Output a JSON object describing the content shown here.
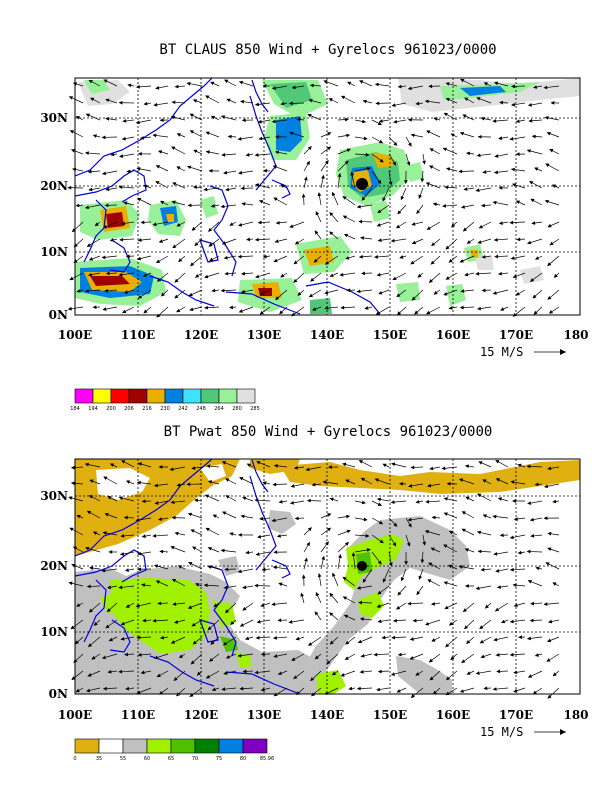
{
  "panels": [
    {
      "title": "BT CLAUS 850 Wind + Gyrelocs 961023/0000",
      "y_labels": [
        "30N",
        "20N",
        "10N",
        "0N"
      ],
      "x_labels": [
        "100E",
        "110E",
        "120E",
        "130E",
        "140E",
        "150E",
        "160E",
        "170E",
        "180"
      ],
      "scale_label": "15 M/S",
      "legend": {
        "values": [
          "184",
          "194",
          "200",
          "206",
          "216",
          "230",
          "242",
          "248",
          "264",
          "280",
          "285"
        ],
        "colors": [
          "#ff00ff",
          "#ffff00",
          "#ff0000",
          "#a00000",
          "#e8b000",
          "#0080e0",
          "#40e0ff",
          "#50c878",
          "#98f098",
          "#e0e0e0"
        ]
      }
    },
    {
      "title": "BT Pwat 850 Wind + Gyrelocs 961023/0000",
      "y_labels": [
        "30N",
        "20N",
        "10N",
        "0N"
      ],
      "x_labels": [
        "100E",
        "110E",
        "120E",
        "130E",
        "140E",
        "150E",
        "160E",
        "170E",
        "180"
      ],
      "scale_label": "15 M/S",
      "legend": {
        "values": [
          "0",
          "35",
          "55",
          "60",
          "65",
          "70",
          "75",
          "80",
          "85.96"
        ],
        "colors": [
          "#e0b010",
          "#ffffff",
          "#c0c0c0",
          "#a0f000",
          "#50c000",
          "#008000",
          "#0080e0",
          "#8000c0"
        ]
      }
    }
  ]
}
